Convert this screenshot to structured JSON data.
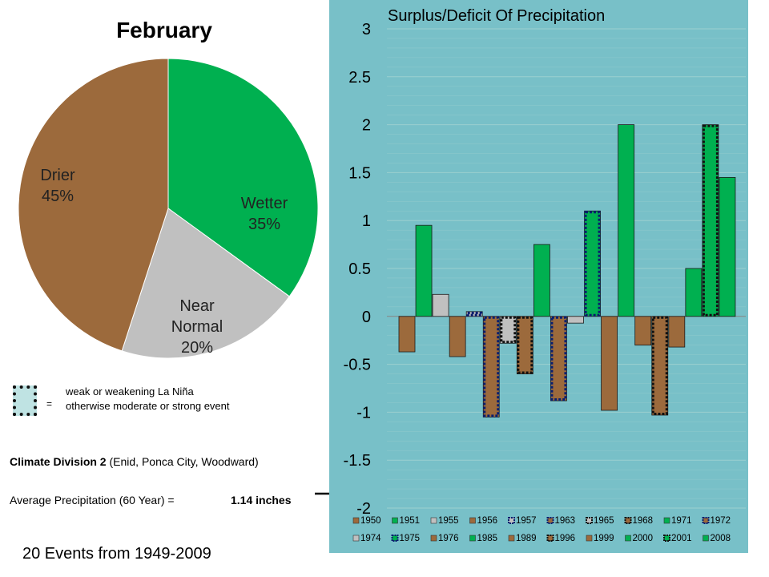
{
  "pie": {
    "title": "February",
    "slices": [
      {
        "label": "Wetter",
        "value": 35,
        "pct": "35%",
        "color": "#00b050"
      },
      {
        "label": "Near",
        "label2": "Normal",
        "value": 20,
        "pct": "20%",
        "color": "#c0c0c0"
      },
      {
        "label": "Drier",
        "value": 45,
        "pct": "45%",
        "color": "#9c6a3c"
      }
    ]
  },
  "key": {
    "equals": "=",
    "line1": "weak or weakening La Niña",
    "line2": "otherwise moderate or strong event"
  },
  "info": {
    "division_bold": "Climate Division 2",
    "division_rest": " (Enid, Ponca City, Woodward)",
    "avg_label": "Average Precipitation (60 Year) =",
    "avg_value": "1.14 inches",
    "events": "20 Events from 1949-2009"
  },
  "chart_data": {
    "type": "bar",
    "title": "Surplus/Deficit Of Precipitation",
    "ylim": [
      -2,
      3
    ],
    "yticks": [
      "3",
      "2.5",
      "2",
      "1.5",
      "1",
      "0.5",
      "0",
      "-0.5",
      "-1",
      "-1.5",
      "-2"
    ],
    "grid": true,
    "legend_position": "bottom",
    "colors": {
      "background": "#78c0c8",
      "wetter": "#00b050",
      "near": "#c0c0c0",
      "drier": "#9c6a3c",
      "weak_outline": "#0a1e6e",
      "strong_outline": "#111111"
    },
    "series": [
      {
        "name": "1950",
        "value": -0.37,
        "category": "drier",
        "outline": "none"
      },
      {
        "name": "1951",
        "value": 0.95,
        "category": "wetter",
        "outline": "none"
      },
      {
        "name": "1955",
        "value": 0.23,
        "category": "near",
        "outline": "none"
      },
      {
        "name": "1956",
        "value": -0.42,
        "category": "drier",
        "outline": "none"
      },
      {
        "name": "1957",
        "value": 0.05,
        "category": "near",
        "outline": "weak"
      },
      {
        "name": "1963",
        "value": -1.05,
        "category": "drier",
        "outline": "weak"
      },
      {
        "name": "1965",
        "value": -0.28,
        "category": "near",
        "outline": "strong"
      },
      {
        "name": "1968",
        "value": -0.6,
        "category": "drier",
        "outline": "strong"
      },
      {
        "name": "1971",
        "value": 0.75,
        "category": "wetter",
        "outline": "none"
      },
      {
        "name": "1972",
        "value": -0.88,
        "category": "drier",
        "outline": "weak"
      },
      {
        "name": "1974",
        "value": -0.07,
        "category": "near",
        "outline": "none"
      },
      {
        "name": "1975",
        "value": 1.1,
        "category": "wetter",
        "outline": "weak"
      },
      {
        "name": "1976",
        "value": -0.98,
        "category": "drier",
        "outline": "none"
      },
      {
        "name": "1985",
        "value": 2.0,
        "category": "wetter",
        "outline": "none"
      },
      {
        "name": "1989",
        "value": -0.3,
        "category": "drier",
        "outline": "none"
      },
      {
        "name": "1996",
        "value": -1.03,
        "category": "drier",
        "outline": "strong"
      },
      {
        "name": "1999",
        "value": -0.32,
        "category": "drier",
        "outline": "none"
      },
      {
        "name": "2000",
        "value": 0.5,
        "category": "wetter",
        "outline": "none"
      },
      {
        "name": "2001",
        "value": 2.0,
        "category": "wetter",
        "outline": "strong"
      },
      {
        "name": "2008",
        "value": 1.45,
        "category": "wetter",
        "outline": "none"
      }
    ]
  }
}
